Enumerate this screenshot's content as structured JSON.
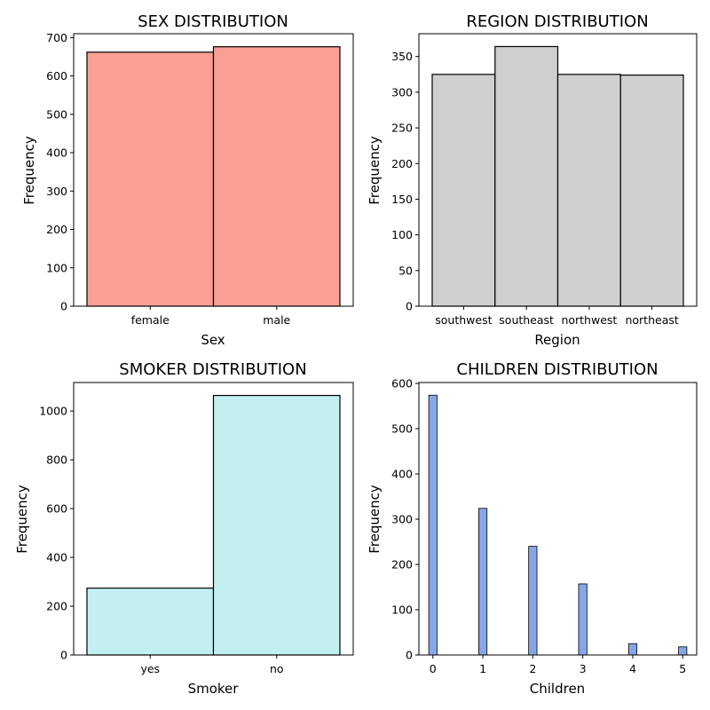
{
  "chart_data": [
    {
      "type": "bar",
      "title": "SEX DISTRIBUTION",
      "xlabel": "Sex",
      "ylabel": "Frequency",
      "categories": [
        "female",
        "male"
      ],
      "values": [
        662,
        676
      ],
      "ylim": [
        0,
        710
      ],
      "yticks": [
        0,
        100,
        200,
        300,
        400,
        500,
        600,
        700
      ],
      "color": "#fa9f94",
      "grid": false
    },
    {
      "type": "bar",
      "title": "REGION DISTRIBUTION",
      "xlabel": "Region",
      "ylabel": "Frequency",
      "categories": [
        "southwest",
        "southeast",
        "northwest",
        "northeast"
      ],
      "values": [
        325,
        364,
        325,
        324
      ],
      "ylim": [
        0,
        382
      ],
      "yticks": [
        0,
        50,
        100,
        150,
        200,
        250,
        300,
        350
      ],
      "color": "#cfcfcf",
      "grid": false
    },
    {
      "type": "bar",
      "title": "SMOKER DISTRIBUTION",
      "xlabel": "Smoker",
      "ylabel": "Frequency",
      "categories": [
        "yes",
        "no"
      ],
      "values": [
        274,
        1064
      ],
      "ylim": [
        0,
        1117
      ],
      "yticks": [
        0,
        200,
        400,
        600,
        800,
        1000
      ],
      "color": "#c2f0f0",
      "grid": false
    },
    {
      "type": "histogram",
      "title": "CHILDREN DISTRIBUTION",
      "xlabel": "Children",
      "ylabel": "Frequency",
      "x": [
        0,
        1,
        2,
        3,
        4,
        5
      ],
      "values": [
        574,
        324,
        240,
        157,
        25,
        18
      ],
      "xlim": [
        -0.28,
        5.28
      ],
      "ylim": [
        0,
        602
      ],
      "xticks": [
        0,
        1,
        2,
        3,
        4,
        5
      ],
      "yticks": [
        0,
        100,
        200,
        300,
        400,
        500,
        600
      ],
      "color": "#87a6e8",
      "grid": false
    }
  ]
}
